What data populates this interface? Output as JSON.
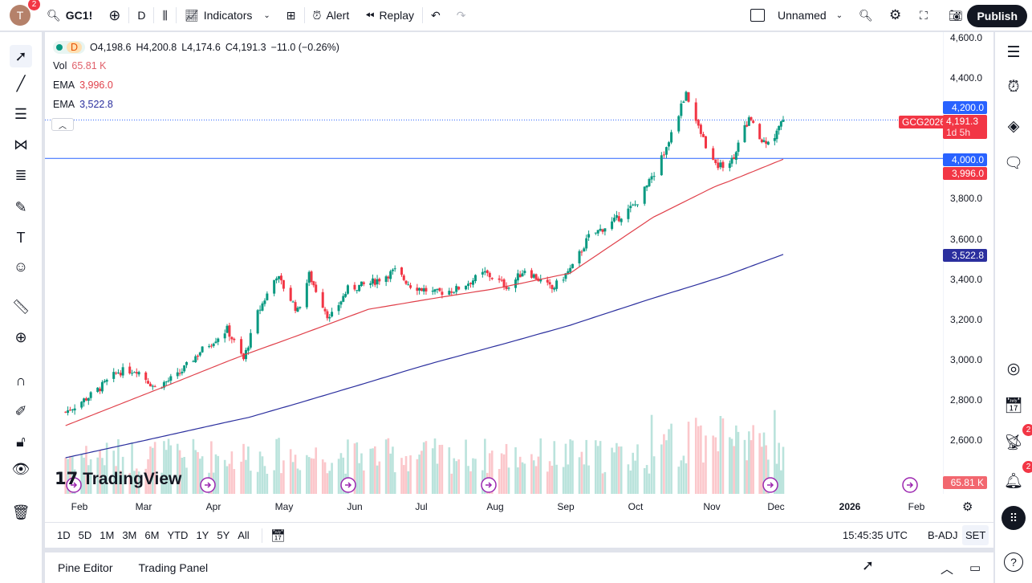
{
  "topbar": {
    "avatar_letter": "T",
    "avatar_badge": "2",
    "symbol": "GC1!",
    "interval": "D",
    "indicators": "Indicators",
    "alert": "Alert",
    "replay": "Replay",
    "layout_name": "Unnamed",
    "publish": "Publish"
  },
  "legend": {
    "interval": "D",
    "open": "O4,198.6",
    "high": "H4,200.8",
    "low": "L4,174.6",
    "close": "C4,191.3",
    "change": "−11.0 (−0.26%)",
    "vol_label": "Vol",
    "vol_value": "65.81 K",
    "ema1_label": "EMA",
    "ema1_value": "3,996.0",
    "ema2_label": "EMA",
    "ema2_value": "3,522.8"
  },
  "price_axis": {
    "ticks": [
      "4,600.0",
      "4,400.0",
      "4,200.0",
      "4,000.0",
      "3,800.0",
      "3,600.0",
      "3,400.0",
      "3,200.0",
      "3,000.0",
      "2,800.0",
      "2,600.0"
    ],
    "labels": {
      "alert_level": "4,200.0",
      "symbol_tag": "GCG2026",
      "last_price": "4,191.3",
      "countdown": "1d 5h",
      "hline": "4,000.0",
      "ema1": "3,996.0",
      "ema2": "3,522.8",
      "volume": "65.81 K"
    }
  },
  "time_axis": {
    "ticks": [
      "Feb",
      "Mar",
      "Apr",
      "May",
      "Jun",
      "Jul",
      "Aug",
      "Sep",
      "Oct",
      "Nov",
      "Dec",
      "2026",
      "Feb"
    ]
  },
  "watermark": "TradingView",
  "ranges": [
    "1D",
    "5D",
    "1M",
    "3M",
    "6M",
    "YTD",
    "1Y",
    "5Y",
    "All"
  ],
  "status": {
    "clock": "15:45:35 UTC",
    "badj": "B-ADJ",
    "set": "SET"
  },
  "bottom_panel": {
    "pine": "Pine Editor",
    "trading": "Trading Panel"
  },
  "right_sidebar": {
    "ideas_badge": "2",
    "alerts_badge": "2"
  },
  "colors": {
    "up": "#089981",
    "down": "#f23645",
    "ema1": "#e0404a",
    "ema2": "#2b2f9e",
    "accent": "#2962ff"
  },
  "chart_data": {
    "type": "candlestick",
    "price_range": [
      2600,
      4600
    ],
    "close_waypoints": [
      [
        "2025-01-20",
        2740
      ],
      [
        "2025-02-01",
        2830
      ],
      [
        "2025-02-12",
        2940
      ],
      [
        "2025-02-20",
        2950
      ],
      [
        "2025-02-28",
        2860
      ],
      [
        "2025-03-10",
        2920
      ],
      [
        "2025-03-20",
        3040
      ],
      [
        "2025-04-01",
        3150
      ],
      [
        "2025-04-08",
        3000
      ],
      [
        "2025-04-14",
        3230
      ],
      [
        "2025-04-22",
        3420
      ],
      [
        "2025-05-01",
        3240
      ],
      [
        "2025-05-06",
        3420
      ],
      [
        "2025-05-15",
        3200
      ],
      [
        "2025-05-23",
        3350
      ],
      [
        "2025-06-02",
        3380
      ],
      [
        "2025-06-13",
        3440
      ],
      [
        "2025-06-20",
        3370
      ],
      [
        "2025-07-01",
        3330
      ],
      [
        "2025-07-10",
        3350
      ],
      [
        "2025-07-22",
        3430
      ],
      [
        "2025-08-01",
        3360
      ],
      [
        "2025-08-08",
        3450
      ],
      [
        "2025-08-20",
        3350
      ],
      [
        "2025-08-29",
        3460
      ],
      [
        "2025-09-05",
        3610
      ],
      [
        "2025-09-15",
        3680
      ],
      [
        "2025-09-25",
        3770
      ],
      [
        "2025-10-01",
        3880
      ],
      [
        "2025-10-08",
        4050
      ],
      [
        "2025-10-16",
        4330
      ],
      [
        "2025-10-21",
        4150
      ],
      [
        "2025-10-28",
        3960
      ],
      [
        "2025-11-04",
        3990
      ],
      [
        "2025-11-12",
        4200
      ],
      [
        "2025-11-18",
        4080
      ],
      [
        "2025-11-24",
        4110
      ],
      [
        "2025-11-28",
        4191.3
      ]
    ],
    "ema1_waypoints": [
      [
        "2025-01-20",
        2672
      ],
      [
        "2025-04-10",
        3031
      ],
      [
        "2025-06-01",
        3250
      ],
      [
        "2025-07-25",
        3350
      ],
      [
        "2025-08-28",
        3430
      ],
      [
        "2025-10-03",
        3710
      ],
      [
        "2025-10-28",
        3862
      ],
      [
        "2025-11-28",
        3996
      ]
    ],
    "ema2_waypoints": [
      [
        "2025-01-20",
        2512
      ],
      [
        "2025-04-10",
        2712
      ],
      [
        "2025-06-20",
        2951
      ],
      [
        "2025-08-28",
        3171
      ],
      [
        "2025-10-25",
        3390
      ],
      [
        "2025-11-28",
        3522.8
      ]
    ],
    "horizontal_lines": [
      4000
    ]
  }
}
